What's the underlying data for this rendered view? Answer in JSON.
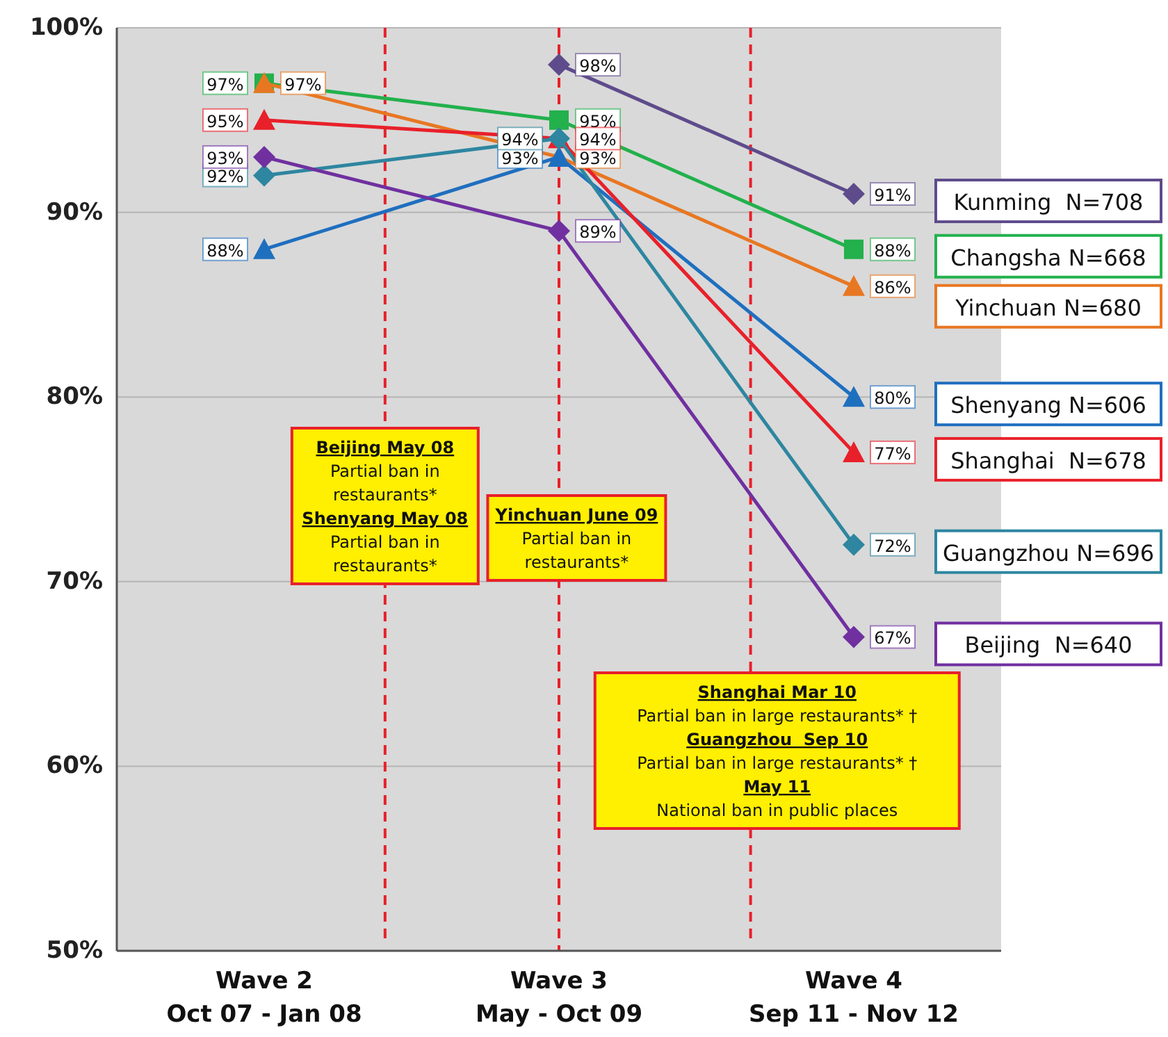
{
  "chart_data": {
    "type": "line",
    "categories": [
      "Wave 2\nOct 07 - Jan 08",
      "Wave 3\nMay - Oct 09",
      "Wave 4\nSep 11 - Nov 12"
    ],
    "ylim": [
      50,
      100
    ],
    "yticks": [
      {
        "value": 50,
        "label": "50%"
      },
      {
        "value": 60,
        "label": "60%"
      },
      {
        "value": 70,
        "label": "70%"
      },
      {
        "value": 80,
        "label": "80%"
      },
      {
        "value": 90,
        "label": "90%"
      },
      {
        "value": 100,
        "label": "100%"
      }
    ],
    "grid": "y",
    "legend": "right",
    "series": [
      {
        "name": "Kunming  N=708",
        "color": "#5e4b8b",
        "marker": "diamond",
        "values": [
          null,
          98,
          91
        ],
        "value_labels": [
          null,
          "98%",
          "91%"
        ]
      },
      {
        "name": "Changsha N=668",
        "color": "#22b14c",
        "marker": "square",
        "values": [
          97,
          95,
          88
        ],
        "value_labels": [
          "97%",
          "95%",
          "88%"
        ]
      },
      {
        "name": "Yinchuan N=680",
        "color": "#e87722",
        "marker": "triangle",
        "values": [
          97,
          93,
          86
        ],
        "value_labels": [
          "97%",
          "93%",
          "86%"
        ]
      },
      {
        "name": "Shenyang N=606",
        "color": "#1f6fbf",
        "marker": "triangle",
        "values": [
          88,
          93,
          80
        ],
        "value_labels": [
          "88%",
          "93%",
          "80%"
        ]
      },
      {
        "name": "Shanghai  N=678",
        "color": "#e8202a",
        "marker": "triangle",
        "values": [
          95,
          94,
          77
        ],
        "value_labels": [
          "95%",
          "94%",
          "77%"
        ]
      },
      {
        "name": "Guangzhou N=696",
        "color": "#2e86a0",
        "marker": "diamond",
        "values": [
          92,
          94,
          72
        ],
        "value_labels": [
          "92%",
          "94%",
          "72%"
        ]
      },
      {
        "name": "Beijing  N=640",
        "color": "#7030a0",
        "marker": "diamond",
        "values": [
          93,
          89,
          67
        ],
        "value_labels": [
          "93%",
          "89%",
          "67%"
        ]
      }
    ],
    "ref_lines": [
      {
        "axis": "x",
        "value": "Wave 3\nMay - Oct 09",
        "color": "#e8202a",
        "line_style": "dashed"
      }
    ],
    "annotations": [
      "Beijing May 08\nPartial ban in restaurants*\nShenyang May 08\nPartial ban in restaurants*",
      "Yinchuan June 09\nPartial ban in restaurants*",
      "Shanghai Mar 10\nPartial ban in large restaurants* †\nGuangzhou  Sep 10\nPartial ban in large restaurants* †\nMay 11\nNational ban in public places"
    ]
  }
}
